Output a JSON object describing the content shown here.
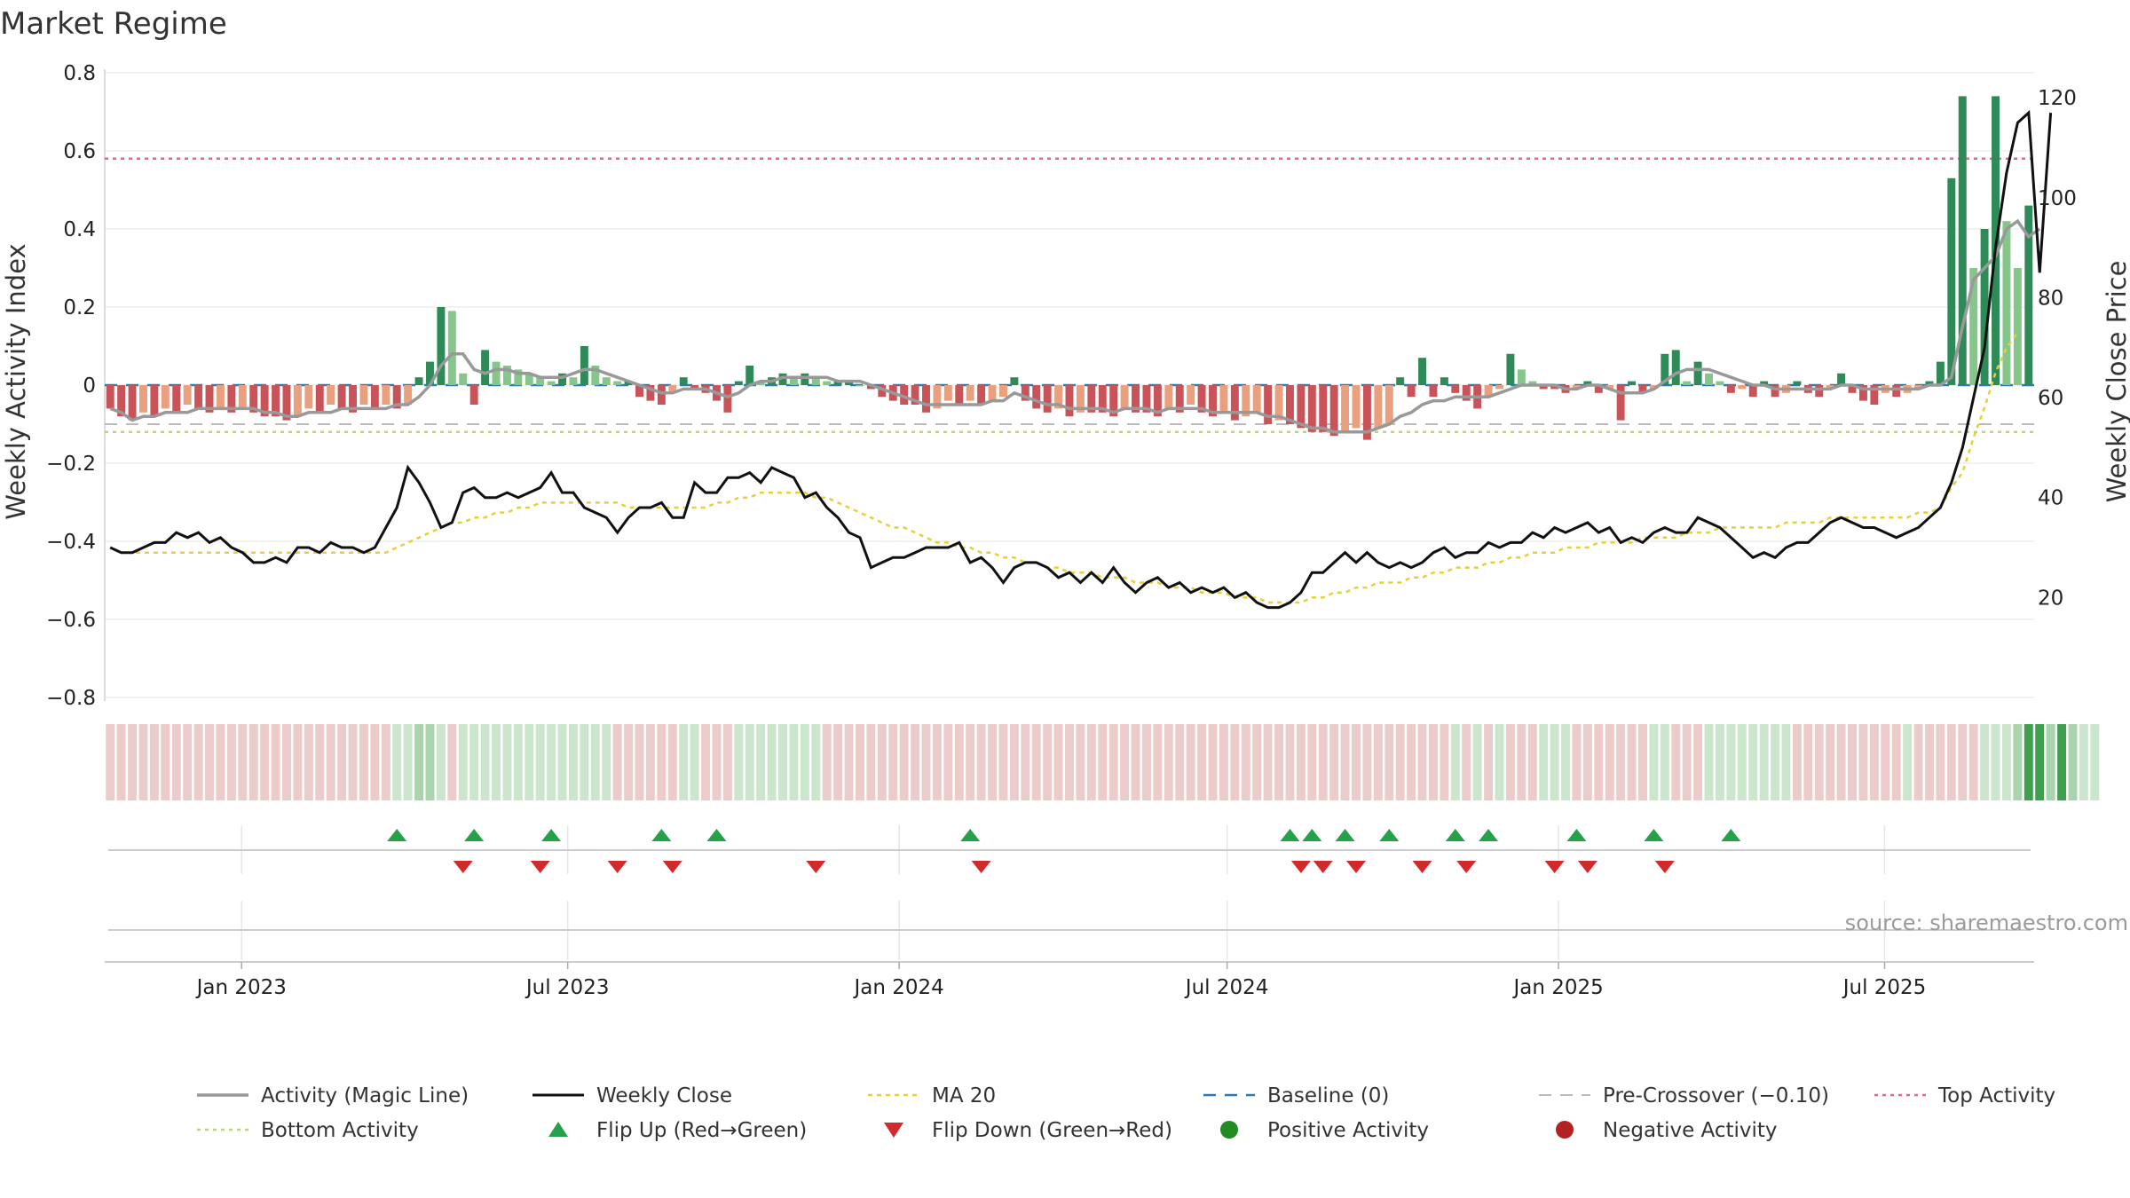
{
  "title": "Market Regime",
  "source": "source: sharemaestro.com",
  "colors": {
    "strong_green": "#2e8b57",
    "light_green": "#86c68a",
    "strong_red": "#c8545a",
    "light_red": "#e9a07e",
    "close": "#111111",
    "ma20": "#e6d03a",
    "magic": "#999999",
    "baseline": "#2a7ab0",
    "precross": "#bbbbbb",
    "top": "#e06888",
    "bottom": "#b8d878",
    "flip_up": "#27a04a",
    "flip_down": "#d3292a"
  },
  "chart_data": {
    "type": "bar+line",
    "title": "Market Regime",
    "y_left": {
      "label": "Weekly Activity Index",
      "range": [
        -0.8,
        0.8
      ],
      "ticks": [
        "−0.8",
        "−0.6",
        "−0.4",
        "−0.2",
        "0",
        "0.2",
        "0.4",
        "0.6",
        "0.8"
      ]
    },
    "y_right": {
      "label": "Weekly Close Price",
      "range": [
        0,
        125
      ],
      "ticks": [
        "20",
        "40",
        "60",
        "80",
        "100",
        "120"
      ]
    },
    "x_ticks": [
      "Jan 2023",
      "Jul 2023",
      "Jan 2024",
      "Jul 2024",
      "Jan 2025",
      "Jul 2025"
    ],
    "x_range": [
      "2022-10-17",
      "2025-09-22"
    ],
    "x_tick_dates": [
      "2023-01-01",
      "2023-07-01",
      "2024-01-01",
      "2024-07-01",
      "2025-01-01",
      "2025-07-01"
    ],
    "reference_lines": {
      "baseline": 0,
      "pre_crossover": -0.1,
      "top_activity": 0.58,
      "bottom_activity": -0.12
    },
    "activity": [
      -0.06,
      -0.08,
      -0.09,
      -0.07,
      -0.08,
      -0.06,
      -0.07,
      -0.05,
      -0.06,
      -0.07,
      -0.06,
      -0.07,
      -0.06,
      -0.07,
      -0.08,
      -0.08,
      -0.09,
      -0.08,
      -0.06,
      -0.07,
      -0.05,
      -0.06,
      -0.07,
      -0.05,
      -0.06,
      -0.05,
      -0.06,
      -0.05,
      0.02,
      0.06,
      0.2,
      0.19,
      0.03,
      -0.05,
      0.09,
      0.06,
      0.05,
      0.04,
      0.03,
      0.02,
      0.01,
      0.03,
      0.02,
      0.1,
      0.05,
      0.02,
      0.01,
      0.01,
      -0.03,
      -0.04,
      -0.05,
      -0.02,
      0.02,
      -0.01,
      -0.02,
      -0.04,
      -0.07,
      0.01,
      0.05,
      0.01,
      0.02,
      0.03,
      0.02,
      0.03,
      0.02,
      0.01,
      0.01,
      0.01,
      0.0,
      -0.01,
      -0.03,
      -0.04,
      -0.05,
      -0.05,
      -0.07,
      -0.06,
      -0.04,
      -0.05,
      -0.04,
      -0.05,
      -0.04,
      -0.03,
      0.02,
      -0.04,
      -0.06,
      -0.07,
      -0.06,
      -0.08,
      -0.07,
      -0.07,
      -0.07,
      -0.08,
      -0.06,
      -0.07,
      -0.07,
      -0.08,
      -0.06,
      -0.07,
      -0.05,
      -0.07,
      -0.08,
      -0.07,
      -0.09,
      -0.08,
      -0.07,
      -0.1,
      -0.09,
      -0.1,
      -0.11,
      -0.12,
      -0.12,
      -0.13,
      -0.12,
      -0.11,
      -0.14,
      -0.11,
      -0.1,
      0.02,
      -0.03,
      0.07,
      -0.03,
      0.02,
      -0.02,
      -0.04,
      -0.06,
      -0.03,
      -0.01,
      0.08,
      0.04,
      0.01,
      -0.01,
      -0.01,
      -0.02,
      -0.01,
      0.01,
      -0.02,
      -0.01,
      -0.09,
      0.01,
      -0.02,
      -0.01,
      0.08,
      0.09,
      0.01,
      0.06,
      0.03,
      0.01,
      -0.02,
      -0.01,
      -0.03,
      0.01,
      -0.03,
      -0.02,
      0.01,
      -0.02,
      -0.03,
      -0.01,
      0.03,
      -0.02,
      -0.04,
      -0.05,
      -0.02,
      -0.03,
      -0.02,
      -0.01,
      0.01,
      0.06,
      0.53,
      0.74,
      0.3,
      0.4,
      0.74,
      0.42,
      0.3,
      0.46
    ],
    "magic_line": [
      -0.06,
      -0.07,
      -0.09,
      -0.08,
      -0.08,
      -0.07,
      -0.07,
      -0.07,
      -0.06,
      -0.06,
      -0.06,
      -0.06,
      -0.06,
      -0.06,
      -0.07,
      -0.07,
      -0.08,
      -0.08,
      -0.07,
      -0.07,
      -0.07,
      -0.06,
      -0.06,
      -0.06,
      -0.06,
      -0.06,
      -0.05,
      -0.05,
      -0.03,
      0.0,
      0.05,
      0.08,
      0.08,
      0.04,
      0.03,
      0.04,
      0.04,
      0.03,
      0.03,
      0.02,
      0.02,
      0.02,
      0.03,
      0.04,
      0.04,
      0.03,
      0.02,
      0.01,
      0.0,
      -0.01,
      -0.02,
      -0.02,
      -0.01,
      -0.01,
      -0.01,
      -0.02,
      -0.03,
      -0.02,
      0.0,
      0.01,
      0.01,
      0.02,
      0.02,
      0.02,
      0.02,
      0.02,
      0.01,
      0.01,
      0.01,
      0.0,
      -0.01,
      -0.02,
      -0.03,
      -0.04,
      -0.05,
      -0.05,
      -0.05,
      -0.05,
      -0.05,
      -0.05,
      -0.04,
      -0.04,
      -0.02,
      -0.03,
      -0.04,
      -0.05,
      -0.05,
      -0.06,
      -0.06,
      -0.06,
      -0.06,
      -0.07,
      -0.06,
      -0.06,
      -0.06,
      -0.07,
      -0.06,
      -0.06,
      -0.06,
      -0.06,
      -0.07,
      -0.07,
      -0.07,
      -0.07,
      -0.07,
      -0.08,
      -0.08,
      -0.09,
      -0.1,
      -0.11,
      -0.11,
      -0.12,
      -0.12,
      -0.12,
      -0.12,
      -0.11,
      -0.1,
      -0.08,
      -0.07,
      -0.05,
      -0.04,
      -0.04,
      -0.03,
      -0.03,
      -0.03,
      -0.03,
      -0.02,
      -0.01,
      0.0,
      0.0,
      0.0,
      0.0,
      -0.01,
      -0.01,
      0.0,
      0.0,
      -0.01,
      -0.02,
      -0.02,
      -0.02,
      -0.01,
      0.01,
      0.03,
      0.04,
      0.04,
      0.04,
      0.03,
      0.02,
      0.01,
      0.0,
      0.0,
      -0.01,
      -0.01,
      -0.01,
      -0.01,
      -0.01,
      -0.01,
      0.0,
      0.0,
      -0.01,
      -0.01,
      -0.01,
      -0.01,
      -0.01,
      -0.01,
      0.0,
      0.0,
      0.02,
      0.15,
      0.27,
      0.3,
      0.33,
      0.4,
      0.42,
      0.38,
      0.4
    ],
    "weekly_close": [
      30,
      29,
      29,
      30,
      31,
      31,
      33,
      32,
      33,
      31,
      32,
      30,
      29,
      27,
      27,
      28,
      27,
      30,
      30,
      29,
      31,
      30,
      30,
      29,
      30,
      34,
      38,
      46,
      43,
      39,
      34,
      35,
      41,
      42,
      40,
      40,
      41,
      40,
      41,
      42,
      45,
      41,
      41,
      38,
      37,
      36,
      33,
      36,
      38,
      38,
      39,
      36,
      36,
      43,
      41,
      41,
      44,
      44,
      45,
      43,
      46,
      45,
      44,
      40,
      41,
      38,
      36,
      33,
      32,
      26,
      27,
      28,
      28,
      29,
      30,
      30,
      30,
      31,
      27,
      28,
      26,
      23,
      26,
      27,
      27,
      26,
      24,
      25,
      23,
      25,
      23,
      26,
      23,
      21,
      23,
      24,
      22,
      23,
      21,
      22,
      21,
      22,
      20,
      21,
      19,
      18,
      18,
      19,
      21,
      25,
      25,
      27,
      29,
      27,
      29,
      27,
      26,
      27,
      26,
      27,
      29,
      30,
      28,
      29,
      29,
      31,
      30,
      31,
      31,
      33,
      32,
      34,
      33,
      34,
      35,
      33,
      34,
      31,
      32,
      31,
      33,
      34,
      33,
      33,
      36,
      35,
      34,
      32,
      30,
      28,
      29,
      28,
      30,
      31,
      31,
      33,
      35,
      36,
      35,
      34,
      34,
      33,
      32,
      33,
      34,
      36,
      38,
      43,
      50,
      60,
      70,
      90,
      105,
      115,
      117,
      85,
      117
    ],
    "ma20": [
      30,
      29,
      29,
      29,
      29,
      29,
      29,
      29,
      29,
      29,
      29,
      29,
      29,
      29,
      29,
      29,
      29,
      29,
      29,
      29,
      29,
      29,
      29,
      29,
      29,
      29,
      30,
      31,
      32,
      33,
      34,
      35,
      35,
      36,
      36,
      37,
      37,
      38,
      38,
      39,
      39,
      39,
      39,
      39,
      39,
      39,
      39,
      38,
      38,
      38,
      38,
      38,
      38,
      38,
      38,
      39,
      39,
      40,
      40,
      41,
      41,
      41,
      41,
      41,
      40,
      40,
      39,
      38,
      37,
      36,
      35,
      34,
      34,
      33,
      32,
      31,
      31,
      30,
      30,
      29,
      29,
      28,
      28,
      27,
      27,
      26,
      26,
      25,
      25,
      25,
      24,
      24,
      24,
      23,
      23,
      23,
      22,
      22,
      22,
      21,
      21,
      21,
      20,
      20,
      20,
      19,
      19,
      19,
      19,
      20,
      20,
      21,
      21,
      22,
      22,
      23,
      23,
      23,
      24,
      24,
      25,
      25,
      26,
      26,
      26,
      27,
      27,
      28,
      28,
      29,
      29,
      29,
      30,
      30,
      30,
      31,
      31,
      31,
      31,
      32,
      32,
      32,
      32,
      33,
      33,
      33,
      34,
      34,
      34,
      34,
      34,
      34,
      35,
      35,
      35,
      35,
      36,
      36,
      36,
      36,
      36,
      36,
      36,
      36,
      37,
      37,
      38,
      42,
      45,
      52,
      58,
      65,
      70,
      73
    ],
    "regime_strip": [
      -1,
      -1,
      -1,
      -1,
      -1,
      -1,
      -1,
      -1,
      -1,
      -1,
      -1,
      -1,
      -1,
      -1,
      -1,
      -1,
      -1,
      -1,
      -1,
      -1,
      -1,
      -1,
      -1,
      -1,
      -1,
      -1,
      1,
      1,
      2,
      2,
      1,
      -1,
      1,
      1,
      1,
      1,
      1,
      1,
      1,
      1,
      1,
      1,
      1,
      1,
      1,
      1,
      -1,
      -1,
      -1,
      -1,
      -1,
      -1,
      1,
      1,
      -1,
      -1,
      -1,
      1,
      1,
      1,
      1,
      1,
      1,
      1,
      1,
      -1,
      -1,
      -1,
      -1,
      -1,
      -1,
      -1,
      -1,
      -1,
      -1,
      -1,
      -1,
      -1,
      -1,
      -1,
      -1,
      -1,
      -1,
      -1,
      -1,
      -1,
      -1,
      -1,
      -1,
      -1,
      -1,
      -1,
      -1,
      -1,
      -1,
      -1,
      -1,
      -1,
      -1,
      -1,
      -1,
      -1,
      -1,
      -1,
      -1,
      -1,
      -1,
      -1,
      -1,
      -1,
      -1,
      -1,
      -1,
      -1,
      -1,
      -1,
      -1,
      -1,
      -1,
      -1,
      -1,
      -1,
      1,
      -1,
      1,
      -1,
      1,
      -1,
      -1,
      -1,
      1,
      1,
      1,
      -1,
      -1,
      -1,
      -1,
      -1,
      -1,
      -1,
      1,
      1,
      -1,
      -1,
      -1,
      1,
      1,
      1,
      1,
      1,
      1,
      1,
      1,
      -1,
      -1,
      -1,
      -1,
      -1,
      -1,
      -1,
      -1,
      -1,
      -1,
      1,
      -1,
      -1,
      -1,
      -1,
      -1,
      -1,
      1,
      1,
      1,
      2,
      3,
      3,
      2,
      3,
      2,
      1,
      1
    ],
    "flip_up_weeks": [
      26,
      33,
      40,
      50,
      55,
      78,
      107,
      109,
      112,
      116,
      122,
      125,
      133,
      140,
      147
    ],
    "flip_down_weeks": [
      32,
      39,
      46,
      51,
      64,
      79,
      108,
      110,
      113,
      119,
      123,
      131,
      134,
      141
    ],
    "legend": [
      {
        "key": "magic",
        "label": "Activity (Magic Line)"
      },
      {
        "key": "close",
        "label": "Weekly Close"
      },
      {
        "key": "ma20",
        "label": "MA 20"
      },
      {
        "key": "baseline",
        "label": "Baseline (0)"
      },
      {
        "key": "precross",
        "label": "Pre-Crossover (−0.10)"
      },
      {
        "key": "top",
        "label": "Top Activity"
      },
      {
        "key": "bottom",
        "label": "Bottom Activity"
      },
      {
        "key": "flip_up",
        "label": "Flip Up (Red→Green)"
      },
      {
        "key": "flip_down",
        "label": "Flip Down (Green→Red)"
      },
      {
        "key": "positive",
        "label": "Positive Activity"
      },
      {
        "key": "negative",
        "label": "Negative Activity"
      }
    ]
  }
}
